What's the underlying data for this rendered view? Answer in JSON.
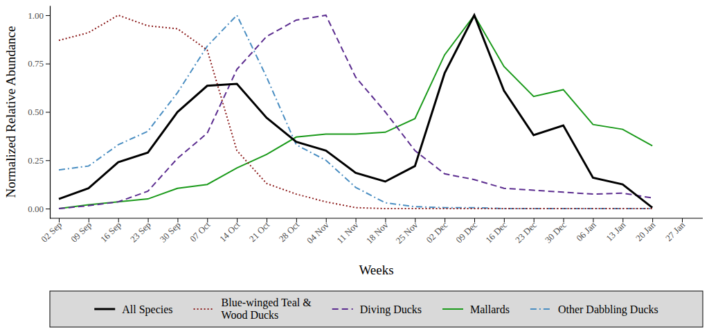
{
  "chart_data": {
    "type": "line",
    "x_label": "Weeks",
    "y_label": "Normalized Relative Abundance",
    "categories": [
      "02 Sep",
      "09 Sep",
      "16 Sep",
      "23 Sep",
      "30 Sep",
      "07 Oct",
      "14 Oct",
      "21 Oct",
      "28 Oct",
      "04 Nov",
      "11 Nov",
      "18 Nov",
      "25 Nov",
      "02 Dec",
      "09 Dec",
      "16 Dec",
      "23 Dec",
      "30 Dec",
      "06 Jan",
      "13 Jan",
      "20 Jan",
      "27 Jan"
    ],
    "ylim": [
      -0.05,
      1.05
    ],
    "yticks": [
      {
        "value": 0,
        "label": "0.00"
      },
      {
        "value": 0.25,
        "label": "0.25"
      },
      {
        "value": 0.5,
        "label": "0.50"
      },
      {
        "value": 0.75,
        "label": "0.75"
      },
      {
        "value": 1,
        "label": "1.00"
      }
    ],
    "grid": false,
    "legend": "bottom",
    "series": [
      {
        "name": "All Species",
        "color": "#000000",
        "line_style": "solid",
        "values": [
          0.05,
          0.105,
          0.24,
          0.29,
          0.5,
          0.635,
          0.645,
          0.47,
          0.345,
          0.3,
          0.185,
          0.14,
          0.22,
          0.7,
          1.0,
          0.61,
          0.38,
          0.43,
          0.16,
          0.125,
          0.005,
          null
        ]
      },
      {
        "name": "Blue-winged Teal & Wood Ducks",
        "color": "#8b1a1a",
        "line_style": "dotted",
        "values": [
          0.87,
          0.91,
          1.0,
          0.945,
          0.93,
          0.82,
          0.3,
          0.13,
          0.075,
          0.035,
          0.005,
          0,
          0,
          0,
          0,
          0,
          0,
          0,
          0,
          0,
          0,
          null
        ]
      },
      {
        "name": "Diving Ducks",
        "color": "#5b2c8f",
        "line_style": "dashed",
        "values": [
          0,
          0.015,
          0.035,
          0.09,
          0.26,
          0.39,
          0.72,
          0.89,
          0.975,
          1.0,
          0.68,
          0.5,
          0.3,
          0.18,
          0.15,
          0.105,
          0.095,
          0.085,
          0.075,
          0.08,
          0.055,
          null
        ]
      },
      {
        "name": "Mallards",
        "color": "#1a9a1a",
        "line_style": "solid",
        "values": [
          0,
          0.02,
          0.035,
          0.05,
          0.105,
          0.125,
          0.21,
          0.28,
          0.37,
          0.385,
          0.385,
          0.395,
          0.465,
          0.795,
          1.0,
          0.735,
          0.58,
          0.615,
          0.435,
          0.41,
          0.325,
          null
        ]
      },
      {
        "name": "Other Dabbling Ducks",
        "color": "#4a8ec2",
        "line_style": "dashdot",
        "values": [
          0.2,
          0.22,
          0.33,
          0.4,
          0.6,
          0.84,
          1.0,
          0.68,
          0.33,
          0.25,
          0.11,
          0.03,
          0.01,
          0.005,
          0.005,
          0,
          0,
          0,
          0,
          0,
          0,
          null
        ]
      }
    ]
  }
}
